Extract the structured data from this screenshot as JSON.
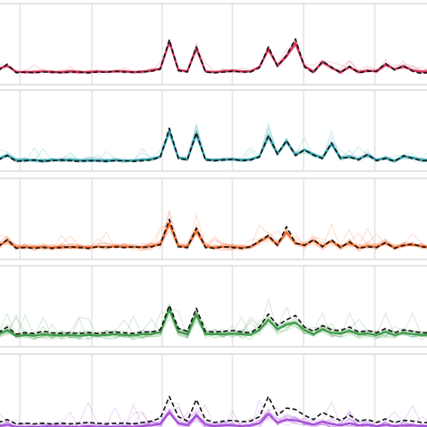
{
  "chart_data": [
    {
      "type": "line",
      "title": "",
      "xlabel": "",
      "ylabel": "",
      "grid": true,
      "legend": "none",
      "color": "#d6335a",
      "x": [
        0,
        1,
        2,
        3,
        4,
        5,
        6,
        7,
        8,
        9,
        10,
        11,
        12,
        13,
        14,
        15,
        16,
        17,
        18,
        19,
        20,
        21,
        22,
        23,
        24,
        25,
        26,
        27,
        28,
        29,
        30,
        31,
        32,
        33,
        34,
        35,
        36,
        37,
        38,
        39,
        40,
        41,
        42,
        43,
        44,
        45,
        46,
        47,
        48
      ],
      "ylim": [
        0,
        1
      ],
      "series": [
        {
          "role": "reference-dashed",
          "values": [
            0.12,
            0.21,
            0.09,
            0.1,
            0.09,
            0.1,
            0.1,
            0.09,
            0.1,
            0.1,
            0.09,
            0.1,
            0.1,
            0.11,
            0.1,
            0.1,
            0.1,
            0.11,
            0.14,
            0.55,
            0.12,
            0.1,
            0.45,
            0.1,
            0.09,
            0.1,
            0.11,
            0.1,
            0.1,
            0.16,
            0.45,
            0.18,
            0.33,
            0.56,
            0.17,
            0.09,
            0.25,
            0.17,
            0.09,
            0.18,
            0.09,
            0.11,
            0.11,
            0.22,
            0.13,
            0.19,
            0.11,
            0.08,
            0.1
          ]
        },
        {
          "role": "mean",
          "values": [
            0.14,
            0.19,
            0.1,
            0.1,
            0.1,
            0.11,
            0.1,
            0.1,
            0.11,
            0.1,
            0.1,
            0.11,
            0.1,
            0.11,
            0.11,
            0.1,
            0.11,
            0.12,
            0.15,
            0.52,
            0.13,
            0.11,
            0.43,
            0.11,
            0.1,
            0.11,
            0.12,
            0.11,
            0.11,
            0.17,
            0.42,
            0.19,
            0.32,
            0.5,
            0.18,
            0.1,
            0.24,
            0.16,
            0.1,
            0.17,
            0.1,
            0.12,
            0.11,
            0.2,
            0.14,
            0.18,
            0.12,
            0.1,
            0.11
          ]
        }
      ]
    },
    {
      "type": "line",
      "title": "",
      "xlabel": "",
      "ylabel": "",
      "grid": true,
      "legend": "none",
      "color": "#2a9fa8",
      "x": [
        0,
        1,
        2,
        3,
        4,
        5,
        6,
        7,
        8,
        9,
        10,
        11,
        12,
        13,
        14,
        15,
        16,
        17,
        18,
        19,
        20,
        21,
        22,
        23,
        24,
        25,
        26,
        27,
        28,
        29,
        30,
        31,
        32,
        33,
        34,
        35,
        36,
        37,
        38,
        39,
        40,
        41,
        42,
        43,
        44,
        45,
        46,
        47,
        48
      ],
      "ylim": [
        0,
        1
      ],
      "series": [
        {
          "role": "reference-dashed",
          "values": [
            0.08,
            0.14,
            0.06,
            0.07,
            0.08,
            0.06,
            0.07,
            0.08,
            0.07,
            0.06,
            0.07,
            0.07,
            0.06,
            0.07,
            0.07,
            0.06,
            0.07,
            0.08,
            0.12,
            0.52,
            0.1,
            0.08,
            0.46,
            0.08,
            0.07,
            0.08,
            0.09,
            0.07,
            0.08,
            0.12,
            0.42,
            0.16,
            0.35,
            0.14,
            0.22,
            0.15,
            0.1,
            0.32,
            0.1,
            0.12,
            0.08,
            0.16,
            0.07,
            0.1,
            0.06,
            0.14,
            0.1,
            0.07,
            0.07
          ]
        },
        {
          "role": "mean",
          "values": [
            0.09,
            0.15,
            0.07,
            0.08,
            0.08,
            0.07,
            0.08,
            0.08,
            0.08,
            0.07,
            0.08,
            0.07,
            0.07,
            0.08,
            0.07,
            0.07,
            0.08,
            0.09,
            0.13,
            0.48,
            0.11,
            0.09,
            0.44,
            0.09,
            0.08,
            0.09,
            0.09,
            0.08,
            0.09,
            0.13,
            0.41,
            0.17,
            0.34,
            0.15,
            0.22,
            0.15,
            0.11,
            0.31,
            0.11,
            0.12,
            0.09,
            0.15,
            0.08,
            0.11,
            0.07,
            0.13,
            0.11,
            0.08,
            0.08
          ]
        }
      ]
    },
    {
      "type": "line",
      "title": "",
      "xlabel": "",
      "ylabel": "",
      "grid": true,
      "legend": "none",
      "color": "#f26a2e",
      "x": [
        0,
        1,
        2,
        3,
        4,
        5,
        6,
        7,
        8,
        9,
        10,
        11,
        12,
        13,
        14,
        15,
        16,
        17,
        18,
        19,
        20,
        21,
        22,
        23,
        24,
        25,
        26,
        27,
        28,
        29,
        30,
        31,
        32,
        33,
        34,
        35,
        36,
        37,
        38,
        39,
        40,
        41,
        42,
        43,
        44,
        45,
        46,
        47,
        48
      ],
      "ylim": [
        0,
        1
      ],
      "series": [
        {
          "role": "reference-dashed",
          "values": [
            0.1,
            0.2,
            0.08,
            0.09,
            0.08,
            0.09,
            0.08,
            0.09,
            0.1,
            0.09,
            0.08,
            0.1,
            0.09,
            0.1,
            0.09,
            0.1,
            0.09,
            0.1,
            0.13,
            0.48,
            0.1,
            0.09,
            0.36,
            0.09,
            0.08,
            0.1,
            0.09,
            0.08,
            0.1,
            0.18,
            0.26,
            0.12,
            0.38,
            0.15,
            0.12,
            0.2,
            0.1,
            0.2,
            0.09,
            0.17,
            0.08,
            0.1,
            0.09,
            0.16,
            0.08,
            0.12,
            0.14,
            0.1,
            0.09
          ]
        },
        {
          "role": "mean",
          "values": [
            0.11,
            0.19,
            0.09,
            0.1,
            0.09,
            0.1,
            0.09,
            0.1,
            0.1,
            0.1,
            0.09,
            0.1,
            0.1,
            0.1,
            0.1,
            0.1,
            0.1,
            0.11,
            0.14,
            0.42,
            0.11,
            0.1,
            0.32,
            0.1,
            0.09,
            0.1,
            0.1,
            0.09,
            0.1,
            0.17,
            0.24,
            0.13,
            0.3,
            0.15,
            0.12,
            0.19,
            0.11,
            0.18,
            0.1,
            0.15,
            0.09,
            0.11,
            0.1,
            0.15,
            0.09,
            0.12,
            0.13,
            0.11,
            0.1
          ]
        }
      ]
    },
    {
      "type": "line",
      "title": "",
      "xlabel": "",
      "ylabel": "",
      "grid": true,
      "legend": "none",
      "color": "#3f9c4a",
      "x": [
        0,
        1,
        2,
        3,
        4,
        5,
        6,
        7,
        8,
        9,
        10,
        11,
        12,
        13,
        14,
        15,
        16,
        17,
        18,
        19,
        20,
        21,
        22,
        23,
        24,
        25,
        26,
        27,
        28,
        29,
        30,
        31,
        32,
        33,
        34,
        35,
        36,
        37,
        38,
        39,
        40,
        41,
        42,
        43,
        44,
        45,
        46,
        47,
        48
      ],
      "ylim": [
        0,
        1
      ],
      "series": [
        {
          "role": "reference-dashed",
          "values": [
            0.12,
            0.2,
            0.1,
            0.12,
            0.11,
            0.14,
            0.12,
            0.11,
            0.12,
            0.11,
            0.12,
            0.11,
            0.12,
            0.13,
            0.12,
            0.11,
            0.13,
            0.13,
            0.16,
            0.5,
            0.18,
            0.14,
            0.46,
            0.14,
            0.13,
            0.14,
            0.15,
            0.13,
            0.12,
            0.2,
            0.38,
            0.22,
            0.3,
            0.36,
            0.2,
            0.14,
            0.22,
            0.16,
            0.15,
            0.2,
            0.13,
            0.15,
            0.12,
            0.18,
            0.12,
            0.16,
            0.14,
            0.12,
            0.12
          ]
        },
        {
          "role": "mean",
          "values": [
            0.1,
            0.16,
            0.07,
            0.09,
            0.08,
            0.1,
            0.09,
            0.08,
            0.09,
            0.08,
            0.09,
            0.08,
            0.09,
            0.1,
            0.09,
            0.08,
            0.1,
            0.1,
            0.13,
            0.44,
            0.13,
            0.1,
            0.38,
            0.1,
            0.1,
            0.1,
            0.11,
            0.1,
            0.09,
            0.16,
            0.3,
            0.17,
            0.23,
            0.26,
            0.16,
            0.1,
            0.17,
            0.12,
            0.11,
            0.15,
            0.1,
            0.11,
            0.09,
            0.13,
            0.09,
            0.12,
            0.1,
            0.09,
            0.09
          ]
        }
      ]
    },
    {
      "type": "line",
      "title": "",
      "xlabel": "",
      "ylabel": "",
      "grid": true,
      "legend": "none",
      "color": "#a64dd6",
      "x": [
        0,
        1,
        2,
        3,
        4,
        5,
        6,
        7,
        8,
        9,
        10,
        11,
        12,
        13,
        14,
        15,
        16,
        17,
        18,
        19,
        20,
        21,
        22,
        23,
        24,
        25,
        26,
        27,
        28,
        29,
        30,
        31,
        32,
        33,
        34,
        35,
        36,
        37,
        38,
        39,
        40,
        41,
        42,
        43,
        44,
        45,
        46,
        47,
        48
      ],
      "ylim": [
        0,
        1
      ],
      "series": [
        {
          "role": "reference-dashed",
          "values": [
            0.1,
            0.14,
            0.08,
            0.09,
            0.08,
            0.09,
            0.08,
            0.09,
            0.08,
            0.09,
            0.1,
            0.09,
            0.08,
            0.09,
            0.09,
            0.08,
            0.1,
            0.12,
            0.16,
            0.46,
            0.18,
            0.12,
            0.42,
            0.14,
            0.1,
            0.12,
            0.13,
            0.11,
            0.12,
            0.18,
            0.46,
            0.2,
            0.3,
            0.28,
            0.2,
            0.14,
            0.24,
            0.18,
            0.13,
            0.2,
            0.12,
            0.14,
            0.1,
            0.15,
            0.1,
            0.13,
            0.12,
            0.1,
            0.1
          ]
        },
        {
          "role": "mean",
          "values": [
            0.05,
            0.07,
            0.04,
            0.04,
            0.04,
            0.04,
            0.04,
            0.04,
            0.04,
            0.04,
            0.05,
            0.04,
            0.04,
            0.04,
            0.04,
            0.04,
            0.05,
            0.06,
            0.08,
            0.24,
            0.09,
            0.06,
            0.2,
            0.07,
            0.05,
            0.06,
            0.06,
            0.05,
            0.06,
            0.09,
            0.22,
            0.1,
            0.14,
            0.13,
            0.1,
            0.07,
            0.11,
            0.08,
            0.06,
            0.09,
            0.06,
            0.07,
            0.05,
            0.07,
            0.05,
            0.06,
            0.06,
            0.05,
            0.05
          ]
        }
      ]
    }
  ]
}
